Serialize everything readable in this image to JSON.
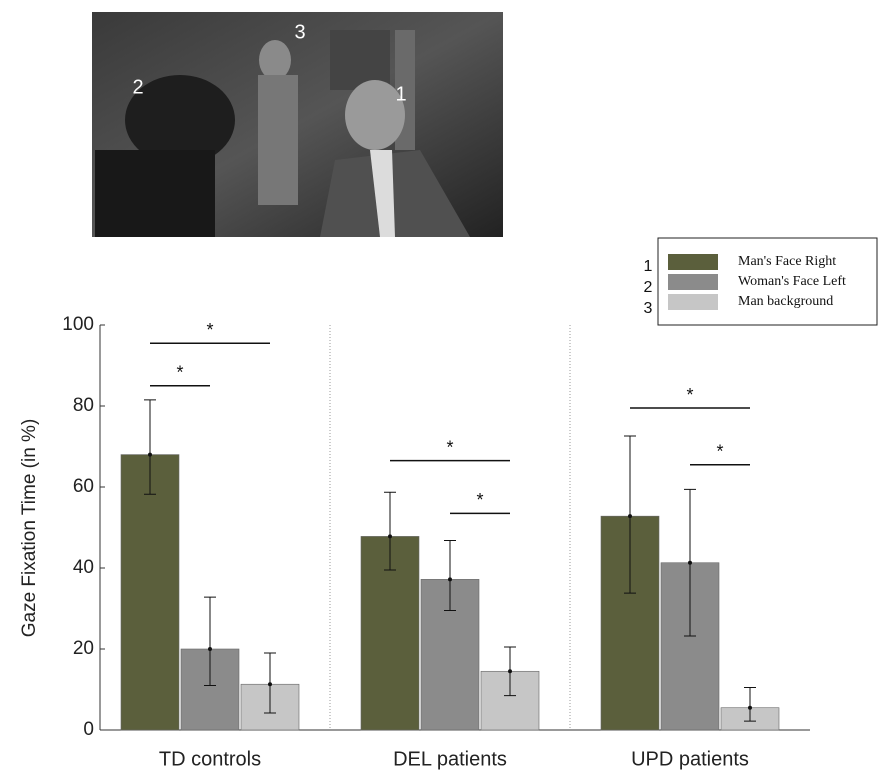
{
  "photo": {
    "labels": [
      "1",
      "2",
      "3"
    ]
  },
  "chart_data": {
    "type": "bar",
    "ylabel": "Gaze Fixation Time (in %)",
    "categories": [
      "TD controls",
      "DEL patients",
      "UPD patients"
    ],
    "series": [
      {
        "name": "Man's Face Right",
        "color": "#5b5f3c",
        "values": [
          68,
          47.8,
          52.8
        ],
        "err_minus": [
          9.8,
          8.3,
          19
        ],
        "err_plus": [
          13.5,
          10.9,
          19.8
        ]
      },
      {
        "name": "Woman's Face Left",
        "color": "#8b8b8b",
        "values": [
          20,
          37.2,
          41.3
        ],
        "err_minus": [
          9,
          7.7,
          18.1
        ],
        "err_plus": [
          12.8,
          9.6,
          18.1
        ]
      },
      {
        "name": "Man background",
        "color": "#c6c6c6",
        "values": [
          11.3,
          14.5,
          5.5
        ],
        "err_minus": [
          7.1,
          6,
          3.3
        ],
        "err_plus": [
          7.7,
          6,
          5
        ]
      }
    ],
    "legend_keys": [
      "1",
      "2",
      "3"
    ],
    "legend": "upper right",
    "ylim": [
      0,
      100
    ],
    "yticks": [
      0,
      20,
      40,
      60,
      80,
      100
    ],
    "significance": [
      {
        "category": 0,
        "from": 0,
        "to": 2,
        "y": 95.5,
        "label": "*"
      },
      {
        "category": 0,
        "from": 0,
        "to": 1,
        "y": 85,
        "label": "*"
      },
      {
        "category": 1,
        "from": 0,
        "to": 2,
        "y": 66.5,
        "label": "*"
      },
      {
        "category": 1,
        "from": 1,
        "to": 2,
        "y": 53.5,
        "label": "*"
      },
      {
        "category": 2,
        "from": 0,
        "to": 2,
        "y": 79.5,
        "label": "*"
      },
      {
        "category": 2,
        "from": 1,
        "to": 2,
        "y": 65.5,
        "label": "*"
      }
    ]
  }
}
